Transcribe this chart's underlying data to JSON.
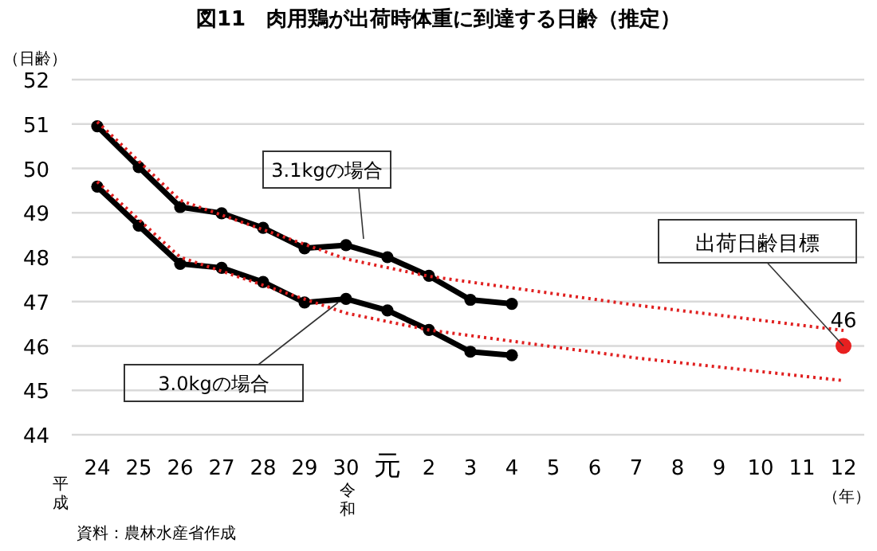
{
  "chart_data": {
    "type": "line",
    "title": "図11　肉用鶏が出荷時体重に到達する日齢（推定）",
    "xlabel": "（年）",
    "ylabel": "（日齢）",
    "categories": [
      "24",
      "25",
      "26",
      "27",
      "28",
      "29",
      "30",
      "元",
      "2",
      "3",
      "4",
      "5",
      "6",
      "7",
      "8",
      "9",
      "10",
      "11",
      "12"
    ],
    "series": [
      {
        "name": "3.1kgの場合",
        "color": "#000000",
        "values": [
          50.95,
          50.03,
          49.13,
          48.99,
          48.66,
          48.2,
          48.27,
          48.0,
          47.58,
          47.04,
          46.95,
          null,
          null,
          null,
          null,
          null,
          null,
          null,
          null
        ]
      },
      {
        "name": "3.0kgの場合",
        "color": "#000000",
        "values": [
          49.59,
          48.71,
          47.85,
          47.76,
          47.44,
          46.98,
          47.06,
          46.8,
          46.36,
          45.87,
          45.79,
          null,
          null,
          null,
          null,
          null,
          null,
          null,
          null
        ]
      },
      {
        "type": "line",
        "line_style": "dotted",
        "marker": "none",
        "color": "#e02020",
        "x": [
          "24",
          "26",
          "30",
          "2",
          "7",
          "12"
        ],
        "values": [
          51.05,
          49.28,
          47.96,
          47.57,
          46.92,
          46.35
        ]
      },
      {
        "type": "line",
        "line_style": "dotted",
        "marker": "none",
        "color": "#e02020",
        "x": [
          "24",
          "26",
          "30",
          "2",
          "7",
          "12"
        ],
        "values": [
          49.7,
          48.0,
          46.74,
          46.36,
          45.73,
          45.22
        ]
      },
      {
        "type": "scatter",
        "color": "#e82020",
        "x": [
          "12"
        ],
        "values": [
          46
        ],
        "value_labels": [
          "46"
        ]
      }
    ],
    "marker": "circle",
    "line_style": "solid",
    "grid": "y",
    "ylim": [
      44,
      52
    ],
    "yticks": [
      44,
      45,
      46,
      47,
      48,
      49,
      50,
      51,
      52
    ],
    "annotations": [
      {
        "text": "出荷日齢目標",
        "x": "12",
        "y": 46
      },
      "平成",
      "令和",
      "資料：農林水産省作成"
    ]
  }
}
